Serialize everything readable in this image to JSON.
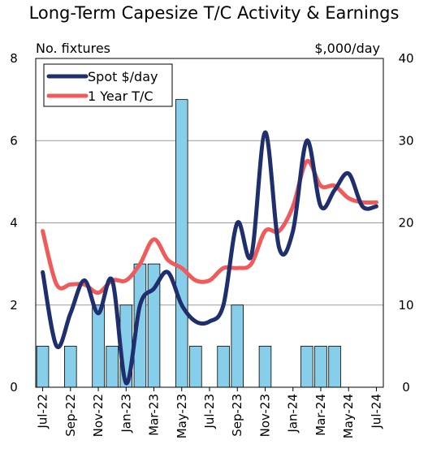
{
  "chart_data": {
    "type": "bar+line",
    "title": "Long-Term Capesize T/C Activity & Earnings",
    "left_axis": {
      "label": "No. fixtures",
      "ylim": [
        0,
        8
      ],
      "ticks": [
        "0",
        "2",
        "4",
        "6",
        "8"
      ]
    },
    "right_axis": {
      "label": "$,000/day",
      "ylim": [
        0,
        40
      ],
      "ticks": [
        "0",
        "10",
        "20",
        "30",
        "40"
      ]
    },
    "x_tick_labels": [
      "Jul-22",
      "Sep-22",
      "Nov-22",
      "Jan-23",
      "Mar-23",
      "May-23",
      "Jul-23",
      "Sep-23",
      "Nov-23",
      "Jan-24",
      "Mar-24",
      "May-24",
      "Jul-24"
    ],
    "months": [
      "Jul-22",
      "Aug-22",
      "Sep-22",
      "Oct-22",
      "Nov-22",
      "Dec-22",
      "Jan-23",
      "Feb-23",
      "Mar-23",
      "Apr-23",
      "May-23",
      "Jun-23",
      "Jul-23",
      "Aug-23",
      "Sep-23",
      "Oct-23",
      "Nov-23",
      "Dec-23",
      "Jan-24",
      "Feb-24",
      "Mar-24",
      "Apr-24",
      "May-24",
      "Jun-24",
      "Jul-24"
    ],
    "grid": true,
    "legend_position": "top-left",
    "series": [
      {
        "name": "No. fixtures",
        "kind": "bar",
        "axis": "left",
        "color": "#87CEEB",
        "values": [
          1,
          0,
          1,
          0,
          2,
          1,
          2,
          3,
          3,
          0,
          7,
          1,
          0,
          1,
          2,
          0,
          1,
          0,
          0,
          1,
          1,
          1,
          0,
          0,
          0
        ]
      },
      {
        "name": "Spot $/day",
        "kind": "line",
        "axis": "right",
        "color": "#1F2F6E",
        "values": [
          14,
          5,
          9,
          13,
          9,
          13,
          0.5,
          10,
          12,
          14,
          10,
          8,
          8,
          10,
          20,
          16,
          31,
          17,
          19,
          30,
          22,
          24,
          26,
          22,
          22
        ]
      },
      {
        "name": "1 Year T/C",
        "kind": "line",
        "axis": "right",
        "color": "#F05A5A",
        "values": [
          19,
          12.5,
          12.5,
          12.5,
          11.5,
          13,
          13,
          15,
          18,
          15.5,
          14.5,
          13,
          13,
          14.5,
          14.5,
          15,
          19,
          19,
          22,
          27.5,
          24.5,
          24.5,
          23,
          22.5,
          22.5
        ]
      }
    ]
  }
}
